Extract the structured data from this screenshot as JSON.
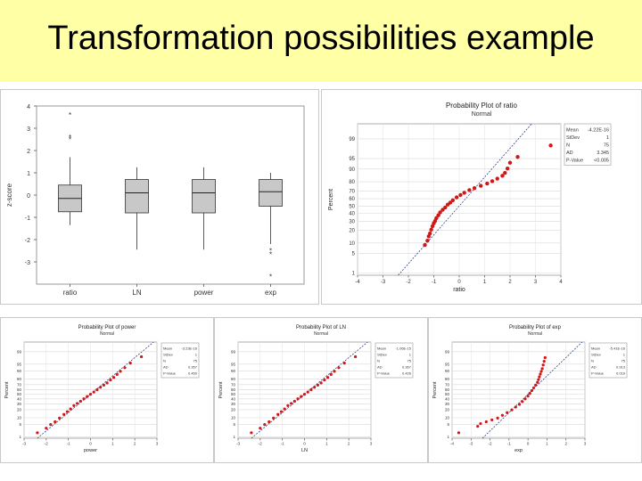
{
  "slide": {
    "title": "Transformation possibilities example",
    "colors": {
      "title_bg": "#ffffa6",
      "points": "#d01818",
      "boxes": "#c8c8c8",
      "fit_line": "#1a2a7a"
    }
  },
  "chart_data": [
    {
      "id": "box",
      "type": "box",
      "categories": [
        "ratio",
        "LN",
        "power",
        "exp"
      ],
      "ylabel": "z-score",
      "ylim": [
        -4,
        4
      ],
      "yticks": [
        -3,
        -2,
        -1,
        0,
        1,
        2,
        3,
        4
      ],
      "boxes": [
        {
          "q1": -0.75,
          "median": -0.15,
          "q3": 0.45,
          "whisker_low": -1.35,
          "whisker_high": 1.7,
          "outliers": [
            3.6,
            2.6,
            2.5
          ]
        },
        {
          "q1": -0.8,
          "median": 0.1,
          "q3": 0.7,
          "whisker_low": -2.45,
          "whisker_high": 1.25,
          "outliers": []
        },
        {
          "q1": -0.8,
          "median": 0.1,
          "q3": 0.7,
          "whisker_low": -2.45,
          "whisker_high": 1.25,
          "outliers": []
        },
        {
          "q1": -0.5,
          "median": 0.15,
          "q3": 0.7,
          "whisker_low": -2.2,
          "whisker_high": 1.0,
          "outliers": [
            -2.5,
            -2.65,
            -3.65
          ]
        }
      ]
    },
    {
      "id": "ratio",
      "type": "probability",
      "title": "Probability Plot of ratio",
      "subtitle": "Normal",
      "xlabel": "ratio",
      "ylabel": "Percent",
      "xlim": [
        -4,
        4
      ],
      "xticks": [
        -4,
        -3,
        -2,
        -1,
        0,
        1,
        2,
        3,
        4
      ],
      "zlim": [
        -2.4,
        2.85
      ],
      "yticks": [
        1,
        5,
        10,
        20,
        30,
        40,
        50,
        60,
        70,
        80,
        90,
        95,
        99
      ],
      "ytick_labels": [
        "1",
        "5",
        "10",
        "20",
        "30",
        "40",
        "50",
        "60",
        "70",
        "80",
        "90",
        "95",
        "99"
      ],
      "legend": {
        "rows": [
          [
            "Mean",
            "-4.22E-16"
          ],
          [
            "StDev",
            "1"
          ],
          [
            "N",
            "75"
          ],
          [
            "AD",
            "3.345"
          ],
          [
            "P-Value",
            "<0.005"
          ]
        ]
      },
      "dist": {
        "kind": "skew",
        "points": [
          [
            -1.35,
            -1.35
          ],
          [
            -1.25,
            -1.2
          ],
          [
            -1.2,
            -1.05
          ],
          [
            -1.15,
            -0.95
          ],
          [
            -1.1,
            -0.82
          ],
          [
            -1.05,
            -0.7
          ],
          [
            -1.0,
            -0.6
          ],
          [
            -0.95,
            -0.52
          ],
          [
            -0.9,
            -0.42
          ],
          [
            -0.82,
            -0.32
          ],
          [
            -0.75,
            -0.22
          ],
          [
            -0.65,
            -0.13
          ],
          [
            -0.55,
            -0.05
          ],
          [
            -0.45,
            0.05
          ],
          [
            -0.35,
            0.12
          ],
          [
            -0.25,
            0.2
          ],
          [
            -0.1,
            0.3
          ],
          [
            0.05,
            0.38
          ],
          [
            0.2,
            0.46
          ],
          [
            0.4,
            0.55
          ],
          [
            0.6,
            0.62
          ],
          [
            0.85,
            0.7
          ],
          [
            1.1,
            0.78
          ],
          [
            1.3,
            0.86
          ],
          [
            1.5,
            0.95
          ],
          [
            1.7,
            1.05
          ],
          [
            1.8,
            1.15
          ],
          [
            1.9,
            1.3
          ],
          [
            2.0,
            1.5
          ],
          [
            2.3,
            1.7
          ],
          [
            3.6,
            2.1
          ]
        ]
      }
    },
    {
      "id": "power",
      "type": "probability",
      "title": "Probability Plot of power",
      "subtitle": "Normal",
      "xlabel": "power",
      "ylabel": "Percent",
      "xlim": [
        -3,
        3
      ],
      "xticks": [
        -3,
        -2,
        -1,
        0,
        1,
        2,
        3
      ],
      "zlim": [
        -2.4,
        2.85
      ],
      "yticks": [
        1,
        5,
        10,
        20,
        30,
        40,
        50,
        60,
        70,
        80,
        90,
        95,
        99
      ],
      "ytick_labels": [
        "1",
        "5",
        "10",
        "20",
        "30",
        "40",
        "50",
        "60",
        "70",
        "80",
        "90",
        "95",
        "99"
      ],
      "legend": {
        "rows": [
          [
            "Mean",
            "-3.23E-16"
          ],
          [
            "StDev",
            "1"
          ],
          [
            "N",
            "75"
          ],
          [
            "AD",
            "0.357"
          ],
          [
            "P-Value",
            "0.450"
          ]
        ]
      },
      "dist": {
        "kind": "normal",
        "points": [
          [
            -2.4,
            -2.1
          ],
          [
            -2.0,
            -1.85
          ],
          [
            -1.8,
            -1.65
          ],
          [
            -1.6,
            -1.5
          ],
          [
            -1.4,
            -1.3
          ],
          [
            -1.2,
            -1.1
          ],
          [
            -1.05,
            -0.95
          ],
          [
            -0.9,
            -0.8
          ],
          [
            -0.75,
            -0.62
          ],
          [
            -0.6,
            -0.5
          ],
          [
            -0.45,
            -0.38
          ],
          [
            -0.3,
            -0.25
          ],
          [
            -0.15,
            -0.12
          ],
          [
            0.0,
            0.0
          ],
          [
            0.15,
            0.12
          ],
          [
            0.3,
            0.25
          ],
          [
            0.45,
            0.38
          ],
          [
            0.6,
            0.5
          ],
          [
            0.75,
            0.62
          ],
          [
            0.9,
            0.78
          ],
          [
            1.05,
            0.92
          ],
          [
            1.2,
            1.08
          ],
          [
            1.35,
            1.25
          ],
          [
            1.55,
            1.45
          ],
          [
            1.8,
            1.7
          ],
          [
            2.3,
            2.05
          ]
        ]
      }
    },
    {
      "id": "ln",
      "type": "probability",
      "title": "Probability Plot of LN",
      "subtitle": "Normal",
      "xlabel": "LN",
      "ylabel": "Percent",
      "xlim": [
        -3,
        3
      ],
      "xticks": [
        -3,
        -2,
        -1,
        0,
        1,
        2,
        3
      ],
      "zlim": [
        -2.4,
        2.85
      ],
      "yticks": [
        1,
        5,
        10,
        20,
        30,
        40,
        50,
        60,
        70,
        80,
        90,
        95,
        99
      ],
      "ytick_labels": [
        "1",
        "5",
        "10",
        "20",
        "30",
        "40",
        "50",
        "60",
        "70",
        "80",
        "90",
        "95",
        "99"
      ],
      "legend": {
        "rows": [
          [
            "Mean",
            "-1.06E-15"
          ],
          [
            "StDev",
            "1"
          ],
          [
            "N",
            "75"
          ],
          [
            "AD",
            "0.367"
          ],
          [
            "P-Value",
            "0.426"
          ]
        ]
      },
      "dist": {
        "kind": "normal",
        "points": [
          [
            -2.4,
            -2.1
          ],
          [
            -2.0,
            -1.85
          ],
          [
            -1.8,
            -1.65
          ],
          [
            -1.6,
            -1.5
          ],
          [
            -1.4,
            -1.3
          ],
          [
            -1.2,
            -1.1
          ],
          [
            -1.05,
            -0.95
          ],
          [
            -0.9,
            -0.8
          ],
          [
            -0.75,
            -0.62
          ],
          [
            -0.6,
            -0.5
          ],
          [
            -0.45,
            -0.38
          ],
          [
            -0.3,
            -0.25
          ],
          [
            -0.15,
            -0.12
          ],
          [
            0.0,
            0.0
          ],
          [
            0.15,
            0.12
          ],
          [
            0.3,
            0.25
          ],
          [
            0.45,
            0.38
          ],
          [
            0.6,
            0.5
          ],
          [
            0.75,
            0.62
          ],
          [
            0.9,
            0.78
          ],
          [
            1.05,
            0.92
          ],
          [
            1.2,
            1.08
          ],
          [
            1.35,
            1.25
          ],
          [
            1.55,
            1.45
          ],
          [
            1.8,
            1.7
          ],
          [
            2.3,
            2.05
          ]
        ]
      }
    },
    {
      "id": "exp",
      "type": "probability",
      "title": "Probability Plot of exp",
      "subtitle": "Normal",
      "xlabel": "exp",
      "ylabel": "Percent",
      "xlim": [
        -4,
        3
      ],
      "xticks": [
        -4,
        -3,
        -2,
        -1,
        0,
        1,
        2,
        3
      ],
      "zlim": [
        -2.4,
        2.85
      ],
      "yticks": [
        1,
        5,
        10,
        20,
        30,
        40,
        50,
        60,
        70,
        80,
        90,
        95,
        99
      ],
      "ytick_labels": [
        "1",
        "5",
        "10",
        "20",
        "30",
        "40",
        "50",
        "60",
        "70",
        "80",
        "90",
        "95",
        "99"
      ],
      "legend": {
        "rows": [
          [
            "Mean",
            "-5.41E-16"
          ],
          [
            "StDev",
            "1"
          ],
          [
            "N",
            "75"
          ],
          [
            "AD",
            "0.913"
          ],
          [
            "P-Value",
            "0.019"
          ]
        ]
      },
      "dist": {
        "kind": "left-skew",
        "points": [
          [
            -3.65,
            -2.1
          ],
          [
            -2.65,
            -1.75
          ],
          [
            -2.5,
            -1.6
          ],
          [
            -2.2,
            -1.5
          ],
          [
            -1.9,
            -1.4
          ],
          [
            -1.6,
            -1.3
          ],
          [
            -1.35,
            -1.15
          ],
          [
            -1.1,
            -1.0
          ],
          [
            -0.85,
            -0.85
          ],
          [
            -0.65,
            -0.7
          ],
          [
            -0.45,
            -0.55
          ],
          [
            -0.3,
            -0.4
          ],
          [
            -0.15,
            -0.25
          ],
          [
            0.0,
            -0.1
          ],
          [
            0.1,
            0.05
          ],
          [
            0.2,
            0.2
          ],
          [
            0.3,
            0.35
          ],
          [
            0.4,
            0.5
          ],
          [
            0.5,
            0.65
          ],
          [
            0.55,
            0.8
          ],
          [
            0.6,
            0.95
          ],
          [
            0.65,
            1.1
          ],
          [
            0.7,
            1.25
          ],
          [
            0.75,
            1.4
          ],
          [
            0.8,
            1.6
          ],
          [
            0.85,
            1.8
          ],
          [
            0.9,
            2.0
          ]
        ]
      }
    }
  ]
}
